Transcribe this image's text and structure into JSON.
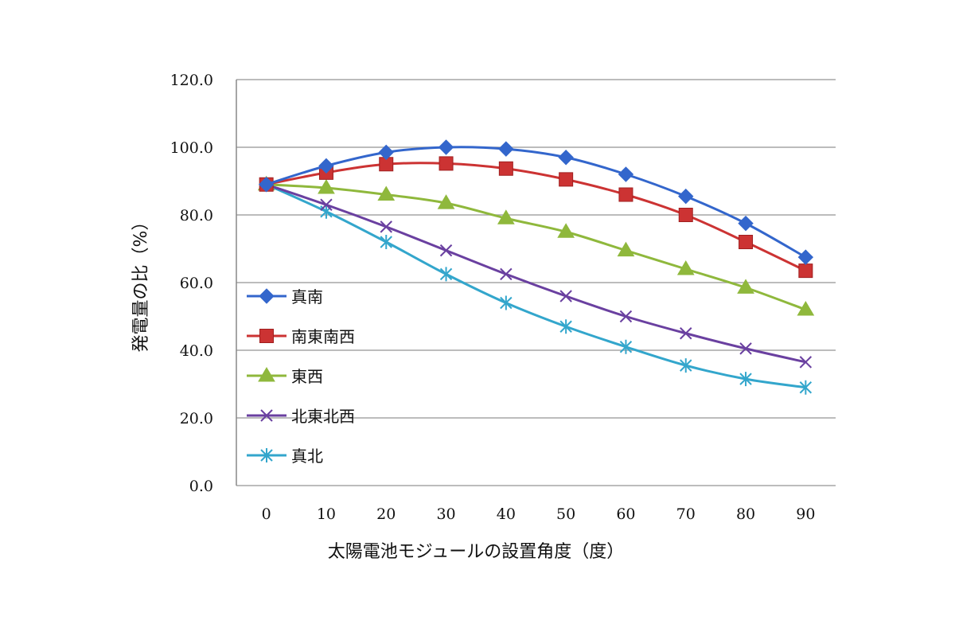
{
  "chart_data": {
    "type": "line",
    "title": "",
    "xlabel": "太陽電池モジュールの設置角度（度）",
    "ylabel": "発電量の比（%）",
    "categories": [
      "0",
      "10",
      "20",
      "30",
      "40",
      "50",
      "60",
      "70",
      "80",
      "90"
    ],
    "x": [
      0,
      10,
      20,
      30,
      40,
      50,
      60,
      70,
      80,
      90
    ],
    "ylim": [
      0,
      120
    ],
    "yticks": [
      "0.0",
      "20.0",
      "40.0",
      "60.0",
      "80.0",
      "100.0",
      "120.0"
    ],
    "grid": true,
    "legend_position": "left-inside",
    "series": [
      {
        "name": "真南",
        "color": "#3366cc",
        "marker": "diamond",
        "values": [
          89.0,
          94.5,
          98.5,
          100.0,
          99.5,
          97.0,
          92.0,
          85.5,
          77.5,
          67.5
        ]
      },
      {
        "name": "南東南西",
        "color": "#cc3333",
        "marker": "square",
        "values": [
          89.0,
          92.5,
          95.0,
          95.2,
          93.7,
          90.5,
          86.0,
          80.0,
          72.0,
          63.5
        ]
      },
      {
        "name": "東西",
        "color": "#8fb83c",
        "marker": "triangle",
        "values": [
          89.0,
          88.0,
          86.0,
          83.5,
          79.0,
          75.0,
          69.5,
          64.0,
          58.5,
          52.0
        ]
      },
      {
        "name": "北東北西",
        "color": "#6a40a0",
        "marker": "x",
        "values": [
          89.0,
          83.0,
          76.5,
          69.5,
          62.5,
          56.0,
          50.0,
          45.0,
          40.5,
          36.5
        ]
      },
      {
        "name": "真北",
        "color": "#33a6cc",
        "marker": "star",
        "values": [
          89.0,
          81.0,
          72.0,
          62.5,
          54.0,
          47.0,
          41.0,
          35.5,
          31.5,
          29.0
        ]
      }
    ]
  }
}
